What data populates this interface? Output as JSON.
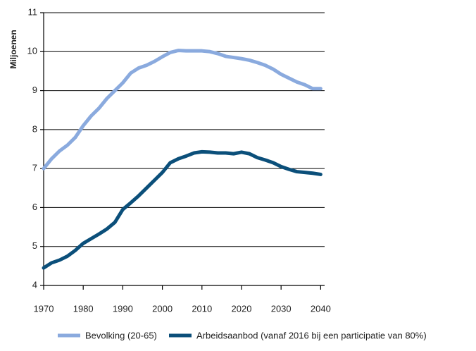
{
  "chart_data": {
    "type": "line",
    "y_label": "Miljoenen",
    "x": [
      1970,
      1972,
      1974,
      1976,
      1978,
      1980,
      1982,
      1984,
      1986,
      1988,
      1990,
      1992,
      1994,
      1996,
      1998,
      2000,
      2002,
      2004,
      2006,
      2008,
      2010,
      2012,
      2014,
      2016,
      2018,
      2020,
      2022,
      2024,
      2026,
      2028,
      2030,
      2032,
      2034,
      2036,
      2038,
      2040
    ],
    "series": [
      {
        "name": "Bevolking (20-65)",
        "color": "#8aaade",
        "values": [
          7.0,
          7.25,
          7.45,
          7.6,
          7.8,
          8.1,
          8.35,
          8.55,
          8.8,
          9.0,
          9.2,
          9.45,
          9.58,
          9.65,
          9.75,
          9.87,
          9.98,
          10.03,
          10.02,
          10.02,
          10.02,
          10.0,
          9.95,
          9.88,
          9.85,
          9.82,
          9.78,
          9.72,
          9.65,
          9.55,
          9.42,
          9.32,
          9.22,
          9.15,
          9.05,
          9.05
        ]
      },
      {
        "name": "Arbeidsaanbod (vanaf 2016 bij een participatie van 80%)",
        "color": "#0b4f7a",
        "values": [
          4.45,
          4.58,
          4.65,
          4.75,
          4.9,
          5.08,
          5.2,
          5.32,
          5.45,
          5.62,
          5.95,
          6.12,
          6.3,
          6.5,
          6.7,
          6.9,
          7.15,
          7.25,
          7.32,
          7.4,
          7.43,
          7.42,
          7.4,
          7.4,
          7.38,
          7.42,
          7.38,
          7.28,
          7.22,
          7.15,
          7.05,
          6.98,
          6.92,
          6.9,
          6.88,
          6.85
        ]
      }
    ],
    "xlim": [
      1970,
      2041
    ],
    "xticks": [
      1970,
      1980,
      1990,
      2000,
      2010,
      2020,
      2030,
      2040
    ],
    "ylim": [
      4,
      11
    ],
    "yticks": [
      4,
      5,
      6,
      7,
      8,
      9,
      10,
      11
    ],
    "grid": true,
    "legend": "bottom"
  }
}
